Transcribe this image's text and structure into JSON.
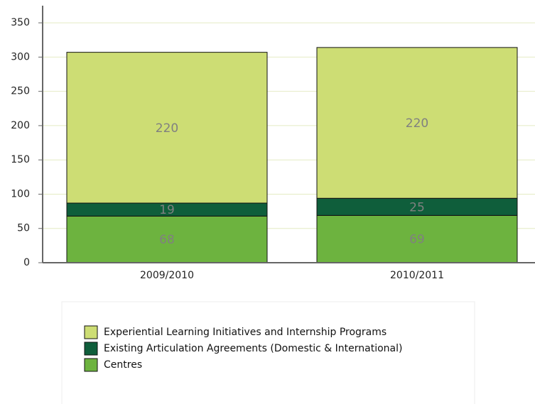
{
  "chart_data": {
    "type": "bar",
    "stacked": true,
    "categories": [
      "2009/2010",
      "2010/2011"
    ],
    "series": [
      {
        "name": "Centres",
        "color": "#6db33f",
        "values": [
          68,
          69
        ]
      },
      {
        "name": "Existing Articulation Agreements (Domestic & International)",
        "color": "#0f5e3b",
        "values": [
          19,
          25
        ]
      },
      {
        "name": "Experiential Learning Initiatives and Internship Programs",
        "color": "#cddd74",
        "values": [
          220,
          220
        ]
      }
    ],
    "ylim": [
      0,
      375
    ],
    "yticks": [
      0,
      50,
      100,
      150,
      200,
      250,
      300,
      350
    ],
    "grid": true
  }
}
